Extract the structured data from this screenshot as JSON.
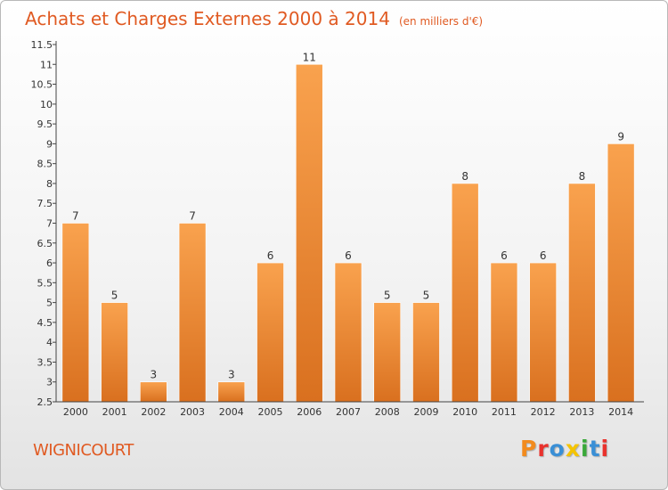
{
  "header": {
    "title": "Achats et Charges Externes 2000 à 2014",
    "unit": "(en milliers d'€)"
  },
  "footer": {
    "commune": "WIGNICOURT",
    "logo": "Proxiti",
    "logo_colors": [
      "#f28b1e",
      "#e9322d",
      "#3a8fd6",
      "#f5c400",
      "#3aa83a",
      "#3a8fd6",
      "#e9322d"
    ]
  },
  "chart_data": {
    "type": "bar",
    "categories": [
      "2000",
      "2001",
      "2002",
      "2003",
      "2004",
      "2005",
      "2006",
      "2007",
      "2008",
      "2009",
      "2010",
      "2011",
      "2012",
      "2013",
      "2014"
    ],
    "values": [
      7,
      5,
      3,
      7,
      3,
      6,
      11,
      6,
      5,
      5,
      8,
      6,
      6,
      8,
      9
    ],
    "data_labels": [
      "7",
      "5",
      "3",
      "7",
      "3",
      "6",
      "11",
      "6",
      "5",
      "5",
      "8",
      "6",
      "6",
      "8",
      "9"
    ],
    "y_ticks": [
      "2.5",
      "3",
      "3.5",
      "4",
      "4.5",
      "5",
      "5.5",
      "6",
      "6.5",
      "7",
      "7.5",
      "8",
      "8.5",
      "9",
      "9.5",
      "10",
      "10.5",
      "11",
      "11.5"
    ],
    "ylim": [
      2.5,
      11.5
    ],
    "grid": false,
    "colors": {
      "bar_top": "#f9a24e",
      "bar_bottom": "#d9701f",
      "axis": "#444444"
    }
  }
}
